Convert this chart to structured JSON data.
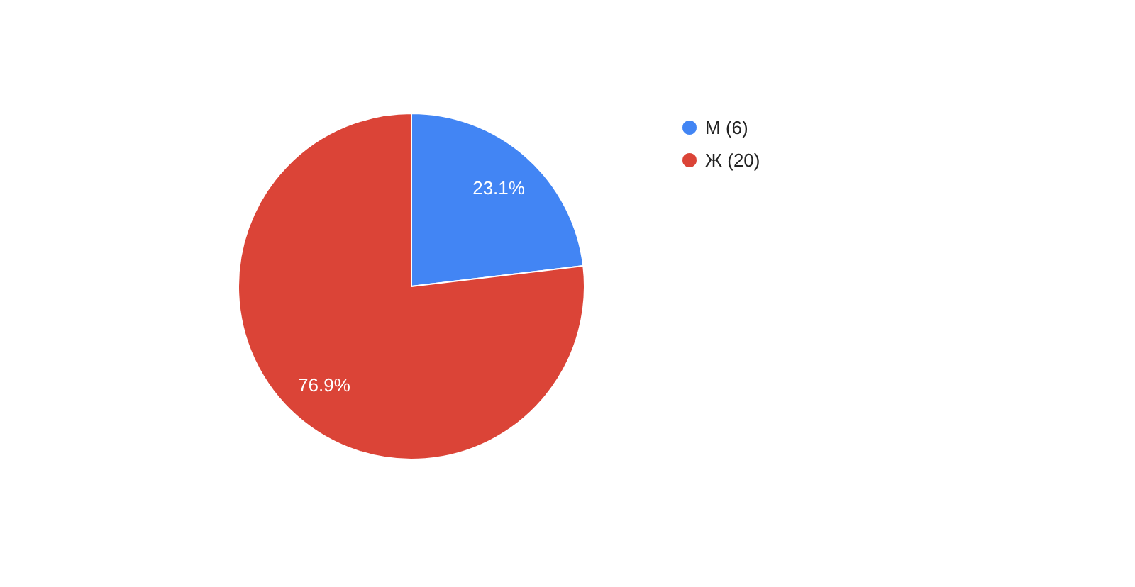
{
  "chart_data": {
    "type": "pie",
    "categories": [
      "М (6)",
      "Ж (20)"
    ],
    "values": [
      23.1,
      76.9
    ],
    "value_labels": [
      "23.1%",
      "76.9%"
    ],
    "colors": [
      "#4285f4",
      "#db4437"
    ],
    "legend": "top right"
  }
}
